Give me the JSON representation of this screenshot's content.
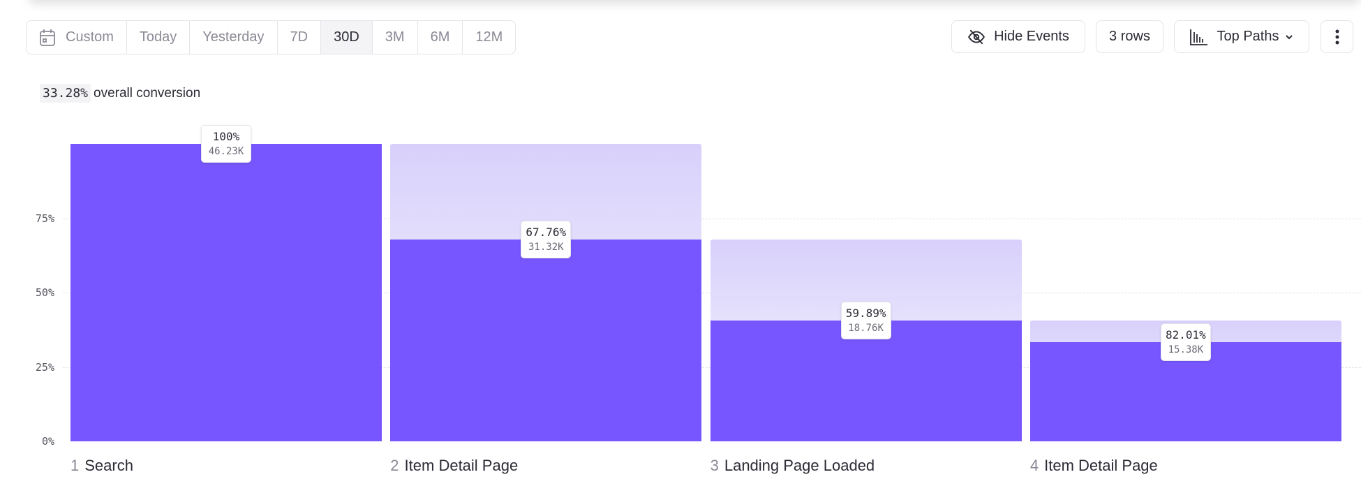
{
  "toolbar": {
    "date_ranges": [
      "Custom",
      "Today",
      "Yesterday",
      "7D",
      "30D",
      "3M",
      "6M",
      "12M"
    ],
    "active_range": "30D",
    "hide_events_label": "Hide Events",
    "rows_label": "3 rows",
    "view_label": "Top Paths"
  },
  "summary": {
    "overall_conversion": "33.28%",
    "overall_conversion_label": "overall conversion"
  },
  "chart_data": {
    "type": "bar",
    "subtype": "funnel",
    "categories": [
      "Search",
      "Item Detail Page",
      "Landing Page Loaded",
      "Item Detail Page"
    ],
    "step_numbers": [
      "1",
      "2",
      "3",
      "4"
    ],
    "values_pct_of_start": [
      100,
      67.76,
      40.58,
      33.28
    ],
    "step_conversion_labels": [
      "100%",
      "67.76%",
      "59.89%",
      "82.01%"
    ],
    "count_labels": [
      "46.23K",
      "31.32K",
      "18.76K",
      "15.38K"
    ],
    "ylim": [
      0,
      100
    ],
    "yticks": [
      "0%",
      "25%",
      "50%",
      "75%"
    ],
    "grid": true,
    "colors": {
      "bar": "#7856ff",
      "previous_step_ghost": "#d8d0fb"
    }
  }
}
